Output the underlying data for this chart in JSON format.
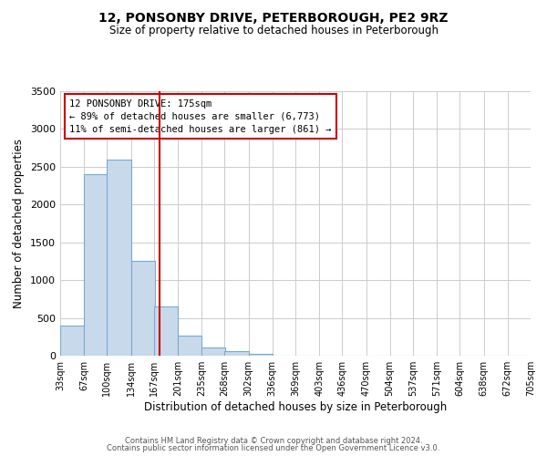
{
  "title": "12, PONSONBY DRIVE, PETERBOROUGH, PE2 9RZ",
  "subtitle": "Size of property relative to detached houses in Peterborough",
  "xlabel": "Distribution of detached houses by size in Peterborough",
  "ylabel": "Number of detached properties",
  "bar_color": "#c9d9ec",
  "bar_edge_color": "#7aaace",
  "background_color": "#ffffff",
  "grid_color": "#cccccc",
  "vline_color": "#cc0000",
  "vline_x": 175,
  "annotation_box_color": "#cc0000",
  "bin_edges": [
    33,
    67,
    100,
    134,
    167,
    201,
    235,
    268,
    302,
    336,
    369,
    403,
    436,
    470,
    504,
    537,
    571,
    604,
    638,
    672,
    705
  ],
  "bin_labels": [
    "33sqm",
    "67sqm",
    "100sqm",
    "134sqm",
    "167sqm",
    "201sqm",
    "235sqm",
    "268sqm",
    "302sqm",
    "336sqm",
    "369sqm",
    "403sqm",
    "436sqm",
    "470sqm",
    "504sqm",
    "537sqm",
    "571sqm",
    "604sqm",
    "638sqm",
    "672sqm",
    "705sqm"
  ],
  "bar_heights": [
    400,
    2400,
    2600,
    1250,
    650,
    260,
    110,
    55,
    30,
    0,
    0,
    0,
    0,
    0,
    0,
    0,
    0,
    0,
    0,
    0
  ],
  "ylim": [
    0,
    3500
  ],
  "yticks": [
    0,
    500,
    1000,
    1500,
    2000,
    2500,
    3000,
    3500
  ],
  "annotation_title": "12 PONSONBY DRIVE: 175sqm",
  "annotation_line1": "← 89% of detached houses are smaller (6,773)",
  "annotation_line2": "11% of semi-detached houses are larger (861) →",
  "footer_line1": "Contains HM Land Registry data © Crown copyright and database right 2024.",
  "footer_line2": "Contains public sector information licensed under the Open Government Licence v3.0."
}
